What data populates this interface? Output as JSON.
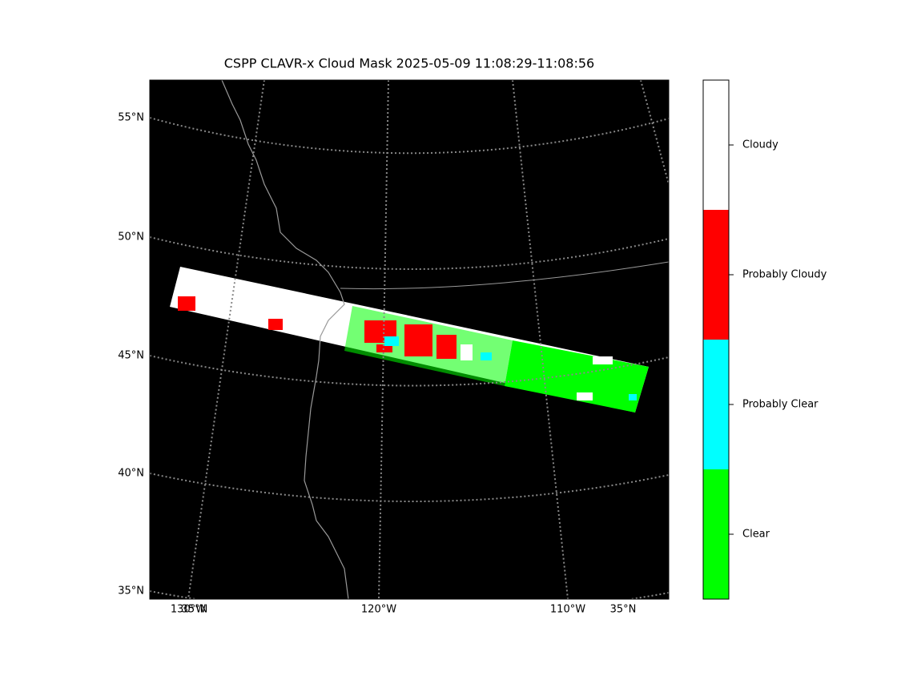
{
  "title": "CSPP CLAVR-x Cloud Mask 2025-05-09 11:08:29-11:08:56",
  "latitude_labels": [
    "55°N",
    "50°N",
    "45°N",
    "40°N",
    "35°N"
  ],
  "bottom_labels": [
    "130°W",
    "35°N",
    "120°W",
    "110°W",
    "35°N"
  ],
  "colorbar": {
    "categories": [
      "Clear",
      "Probably Clear",
      "Probably Cloudy",
      "Cloudy"
    ],
    "colors": [
      "#00ff00",
      "#00ffff",
      "#ff0000",
      "#ffffff"
    ]
  }
}
